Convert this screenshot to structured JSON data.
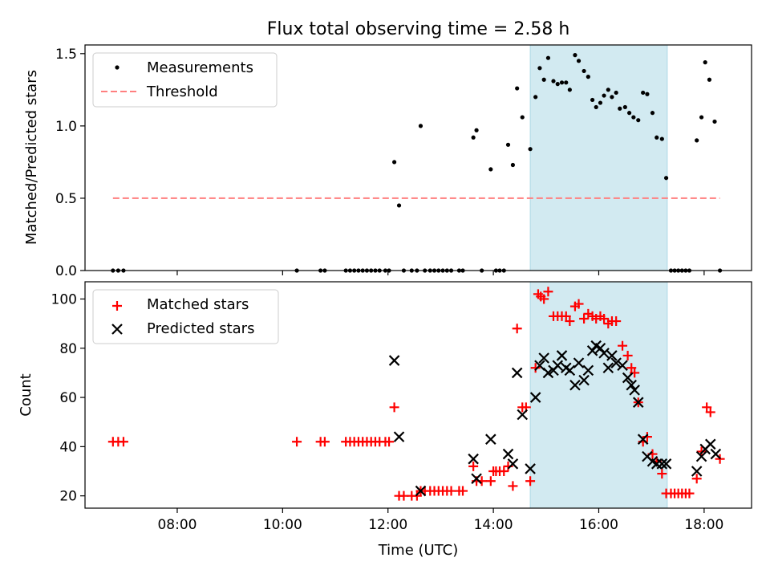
{
  "chart_data": {
    "title": "Flux total observing time = 2.58 h",
    "xlabel": "Time (UTC)",
    "x_range_hours": [
      6.25,
      18.9
    ],
    "x_ticks": [
      "08:00",
      "10:00",
      "12:00",
      "14:00",
      "16:00",
      "18:00"
    ],
    "x_tick_hours": [
      8,
      10,
      12,
      14,
      16,
      18
    ],
    "highlight_span_hours": [
      14.7,
      17.3
    ],
    "highlight_color": "#add8e6",
    "panels": [
      {
        "type": "scatter",
        "ylabel": "Matched/Predicted stars",
        "ylim": [
          0,
          1.56
        ],
        "y_ticks": [
          "0.0",
          "0.5",
          "1.0",
          "1.5"
        ],
        "y_tick_values": [
          0,
          0.5,
          1.0,
          1.5
        ],
        "legend_position": "upper-left",
        "series": [
          {
            "name": "Measurements",
            "marker": "dot",
            "color": "#000000",
            "points": [
              [
                6.78,
                0
              ],
              [
                6.88,
                0
              ],
              [
                6.98,
                0
              ],
              [
                10.27,
                0
              ],
              [
                10.72,
                0
              ],
              [
                10.8,
                0
              ],
              [
                11.2,
                0
              ],
              [
                11.28,
                0
              ],
              [
                11.36,
                0
              ],
              [
                11.44,
                0
              ],
              [
                11.52,
                0
              ],
              [
                11.6,
                0
              ],
              [
                11.68,
                0
              ],
              [
                11.76,
                0
              ],
              [
                11.84,
                0
              ],
              [
                11.95,
                0
              ],
              [
                12.02,
                0
              ],
              [
                12.12,
                0.75
              ],
              [
                12.21,
                0.45
              ],
              [
                12.3,
                0
              ],
              [
                12.45,
                0
              ],
              [
                12.55,
                0
              ],
              [
                12.62,
                1.0
              ],
              [
                12.7,
                0
              ],
              [
                12.8,
                0
              ],
              [
                12.88,
                0
              ],
              [
                12.96,
                0
              ],
              [
                13.04,
                0
              ],
              [
                13.12,
                0
              ],
              [
                13.2,
                0
              ],
              [
                13.35,
                0
              ],
              [
                13.42,
                0
              ],
              [
                13.62,
                0.92
              ],
              [
                13.68,
                0.97
              ],
              [
                13.78,
                0
              ],
              [
                13.95,
                0.7
              ],
              [
                14.05,
                0
              ],
              [
                14.12,
                0
              ],
              [
                14.2,
                0
              ],
              [
                14.28,
                0.87
              ],
              [
                14.37,
                0.73
              ],
              [
                14.45,
                1.26
              ],
              [
                14.55,
                1.06
              ],
              [
                14.7,
                0.84
              ],
              [
                14.8,
                1.2
              ],
              [
                14.88,
                1.4
              ],
              [
                14.96,
                1.32
              ],
              [
                15.04,
                1.47
              ],
              [
                15.14,
                1.31
              ],
              [
                15.22,
                1.29
              ],
              [
                15.3,
                1.3
              ],
              [
                15.38,
                1.3
              ],
              [
                15.45,
                1.25
              ],
              [
                15.55,
                1.49
              ],
              [
                15.62,
                1.45
              ],
              [
                15.72,
                1.38
              ],
              [
                15.8,
                1.34
              ],
              [
                15.88,
                1.18
              ],
              [
                15.95,
                1.13
              ],
              [
                16.03,
                1.16
              ],
              [
                16.1,
                1.21
              ],
              [
                16.18,
                1.25
              ],
              [
                16.25,
                1.2
              ],
              [
                16.33,
                1.23
              ],
              [
                16.4,
                1.12
              ],
              [
                16.5,
                1.13
              ],
              [
                16.58,
                1.09
              ],
              [
                16.66,
                1.06
              ],
              [
                16.75,
                1.04
              ],
              [
                16.84,
                1.23
              ],
              [
                16.92,
                1.22
              ],
              [
                17.02,
                1.09
              ],
              [
                17.1,
                0.92
              ],
              [
                17.2,
                0.91
              ],
              [
                17.28,
                0.64
              ],
              [
                17.37,
                0
              ],
              [
                17.44,
                0
              ],
              [
                17.51,
                0
              ],
              [
                17.58,
                0
              ],
              [
                17.65,
                0
              ],
              [
                17.72,
                0
              ],
              [
                17.86,
                0.9
              ],
              [
                17.95,
                1.06
              ],
              [
                18.02,
                1.44
              ],
              [
                18.1,
                1.32
              ],
              [
                18.2,
                1.03
              ],
              [
                18.3,
                0
              ]
            ]
          },
          {
            "name": "Threshold",
            "marker": "dashed-line",
            "color": "#ff7f7f",
            "points": [
              [
                6.78,
                0.5
              ],
              [
                18.3,
                0.5
              ]
            ]
          }
        ]
      },
      {
        "type": "scatter",
        "ylabel": "Count",
        "ylim": [
          15,
          107
        ],
        "y_ticks": [
          "20",
          "40",
          "60",
          "80",
          "100"
        ],
        "y_tick_values": [
          20,
          40,
          60,
          80,
          100
        ],
        "legend_position": "upper-left",
        "series": [
          {
            "name": "Matched stars",
            "marker": "plus",
            "color": "#ff0000",
            "points": [
              [
                6.78,
                42
              ],
              [
                6.88,
                42
              ],
              [
                6.98,
                42
              ],
              [
                10.27,
                42
              ],
              [
                10.72,
                42
              ],
              [
                10.8,
                42
              ],
              [
                11.2,
                42
              ],
              [
                11.28,
                42
              ],
              [
                11.36,
                42
              ],
              [
                11.44,
                42
              ],
              [
                11.52,
                42
              ],
              [
                11.6,
                42
              ],
              [
                11.68,
                42
              ],
              [
                11.76,
                42
              ],
              [
                11.84,
                42
              ],
              [
                11.95,
                42
              ],
              [
                12.02,
                42
              ],
              [
                12.12,
                56
              ],
              [
                12.21,
                20
              ],
              [
                12.3,
                20
              ],
              [
                12.45,
                20
              ],
              [
                12.55,
                20
              ],
              [
                12.62,
                22
              ],
              [
                12.7,
                22
              ],
              [
                12.8,
                22
              ],
              [
                12.88,
                22
              ],
              [
                12.96,
                22
              ],
              [
                13.04,
                22
              ],
              [
                13.12,
                22
              ],
              [
                13.2,
                22
              ],
              [
                13.35,
                22
              ],
              [
                13.42,
                22
              ],
              [
                13.62,
                32
              ],
              [
                13.68,
                26
              ],
              [
                13.78,
                26
              ],
              [
                13.95,
                26
              ],
              [
                14.0,
                30
              ],
              [
                14.05,
                30
              ],
              [
                14.12,
                30
              ],
              [
                14.2,
                30
              ],
              [
                14.28,
                32
              ],
              [
                14.37,
                24
              ],
              [
                14.45,
                88
              ],
              [
                14.55,
                56
              ],
              [
                14.62,
                56
              ],
              [
                14.7,
                26
              ],
              [
                14.8,
                72
              ],
              [
                14.85,
                102
              ],
              [
                14.9,
                101
              ],
              [
                14.96,
                100
              ],
              [
                15.04,
                103
              ],
              [
                15.14,
                93
              ],
              [
                15.22,
                93
              ],
              [
                15.3,
                93
              ],
              [
                15.38,
                93
              ],
              [
                15.45,
                91
              ],
              [
                15.55,
                97
              ],
              [
                15.62,
                98
              ],
              [
                15.72,
                92
              ],
              [
                15.8,
                94
              ],
              [
                15.88,
                93
              ],
              [
                15.95,
                92
              ],
              [
                16.03,
                93
              ],
              [
                16.1,
                92
              ],
              [
                16.18,
                90
              ],
              [
                16.25,
                91
              ],
              [
                16.33,
                91
              ],
              [
                16.45,
                81
              ],
              [
                16.55,
                77
              ],
              [
                16.62,
                72
              ],
              [
                16.68,
                70
              ],
              [
                16.75,
                58
              ],
              [
                16.84,
                42
              ],
              [
                16.92,
                44
              ],
              [
                17.02,
                37
              ],
              [
                17.1,
                34
              ],
              [
                17.2,
                29
              ],
              [
                17.28,
                21
              ],
              [
                17.37,
                21
              ],
              [
                17.44,
                21
              ],
              [
                17.51,
                21
              ],
              [
                17.58,
                21
              ],
              [
                17.65,
                21
              ],
              [
                17.72,
                21
              ],
              [
                17.86,
                27
              ],
              [
                17.95,
                38
              ],
              [
                18.05,
                56
              ],
              [
                18.12,
                54
              ],
              [
                18.3,
                35
              ]
            ]
          },
          {
            "name": "Predicted stars",
            "marker": "x",
            "color": "#000000",
            "points": [
              [
                12.12,
                75
              ],
              [
                12.21,
                44
              ],
              [
                12.62,
                22
              ],
              [
                13.62,
                35
              ],
              [
                13.68,
                27
              ],
              [
                13.95,
                43
              ],
              [
                14.28,
                37
              ],
              [
                14.37,
                33
              ],
              [
                14.45,
                70
              ],
              [
                14.55,
                53
              ],
              [
                14.7,
                31
              ],
              [
                14.8,
                60
              ],
              [
                14.88,
                73
              ],
              [
                14.96,
                76
              ],
              [
                15.04,
                70
              ],
              [
                15.14,
                71
              ],
              [
                15.22,
                73
              ],
              [
                15.3,
                77
              ],
              [
                15.38,
                72
              ],
              [
                15.45,
                71
              ],
              [
                15.55,
                65
              ],
              [
                15.62,
                74
              ],
              [
                15.72,
                67
              ],
              [
                15.8,
                71
              ],
              [
                15.88,
                79
              ],
              [
                15.95,
                81
              ],
              [
                16.03,
                80
              ],
              [
                16.1,
                78
              ],
              [
                16.18,
                72
              ],
              [
                16.25,
                77
              ],
              [
                16.33,
                74
              ],
              [
                16.45,
                73
              ],
              [
                16.55,
                68
              ],
              [
                16.62,
                65
              ],
              [
                16.68,
                63
              ],
              [
                16.75,
                58
              ],
              [
                16.84,
                43
              ],
              [
                16.92,
                36
              ],
              [
                17.02,
                34
              ],
              [
                17.1,
                33
              ],
              [
                17.2,
                33
              ],
              [
                17.28,
                33
              ],
              [
                17.86,
                30
              ],
              [
                17.95,
                36
              ],
              [
                18.02,
                39
              ],
              [
                18.12,
                41
              ],
              [
                18.22,
                37
              ]
            ]
          }
        ]
      }
    ]
  }
}
